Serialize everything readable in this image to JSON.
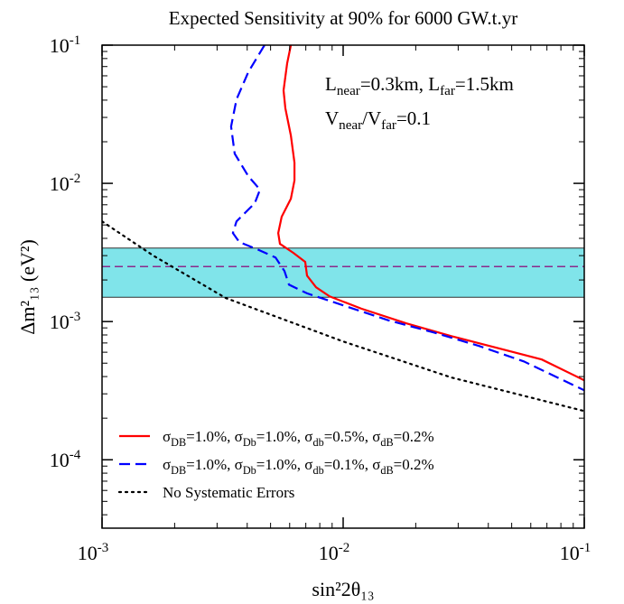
{
  "chart_data": {
    "type": "line",
    "title": "Expected Sensitivity at 90% for 6000 GW.t.yr",
    "xlabel": "sin²2θ₁₃",
    "ylabel": "Δm²₁₃ (eV²)",
    "xscale": "log",
    "yscale": "log",
    "xlim": [
      0.001,
      0.1
    ],
    "ylim": [
      3.2e-05,
      0.1
    ],
    "xticks": [
      {
        "value": 0.001,
        "label": "10-3"
      },
      {
        "value": 0.01,
        "label": "10-2"
      },
      {
        "value": 0.1,
        "label": "10-1"
      }
    ],
    "yticks": [
      {
        "value": 0.0001,
        "label": "10-4"
      },
      {
        "value": 0.001,
        "label": "10-3"
      },
      {
        "value": 0.01,
        "label": "10-2"
      },
      {
        "value": 0.1,
        "label": "10-1"
      }
    ],
    "band": {
      "ylim": [
        0.0015,
        0.0034
      ],
      "center": 0.0025,
      "color": "#80e4ea",
      "line_color": "#8b2b8b"
    },
    "annotations": [
      "Lnear=0.3km,  Lfar=1.5km",
      "Vnear/Vfar=0.1"
    ],
    "legend": "lower left",
    "series": [
      {
        "name": "σDB=1.0%, σDb=1.0%, σdb=0.5%, σdB=0.2%",
        "color": "#ff0000",
        "dash": "solid",
        "x": [
          0.00607,
          0.00586,
          0.00566,
          0.00576,
          0.00607,
          0.00628,
          0.00628,
          0.00607,
          0.00556,
          0.00538,
          0.00547,
          0.00622,
          0.00696,
          0.00708,
          0.00772,
          0.00879,
          0.0119,
          0.0183,
          0.0281,
          0.0433,
          0.0667,
          0.1
        ],
        "values": [
          0.1,
          0.074,
          0.0471,
          0.0349,
          0.0222,
          0.0141,
          0.0105,
          0.00774,
          0.00573,
          0.00437,
          0.00365,
          0.00314,
          0.0027,
          0.00215,
          0.00177,
          0.00152,
          0.00124,
          0.00097,
          0.000785,
          0.000646,
          0.000531,
          0.000376
        ]
      },
      {
        "name": "σDB=1.0%, σDb=1.0%, σdb=0.1%, σdB=0.2%",
        "color": "#0000ff",
        "dash": "dashed",
        "x": [
          0.00472,
          0.00404,
          0.00361,
          0.00343,
          0.00355,
          0.00404,
          0.00452,
          0.0043,
          0.00361,
          0.00349,
          0.00371,
          0.00441,
          0.00524,
          0.00571,
          0.00596,
          0.00708,
          0.01,
          0.0154,
          0.0237,
          0.0365,
          0.0561,
          0.1
        ],
        "values": [
          0.1,
          0.0637,
          0.0405,
          0.0258,
          0.0164,
          0.0113,
          0.009,
          0.00718,
          0.00531,
          0.00437,
          0.00376,
          0.00333,
          0.00291,
          0.00232,
          0.00185,
          0.0016,
          0.00131,
          0.00102,
          0.000835,
          0.000667,
          0.000515,
          0.000318
        ]
      },
      {
        "name": "No Systematic Errors",
        "color": "#000000",
        "dash": "dotted",
        "x": [
          0.001,
          0.00163,
          0.00326,
          0.01,
          0.0281,
          0.1
        ],
        "values": [
          0.00531,
          0.003,
          0.00148,
          0.000718,
          0.000394,
          0.000225
        ]
      }
    ]
  }
}
